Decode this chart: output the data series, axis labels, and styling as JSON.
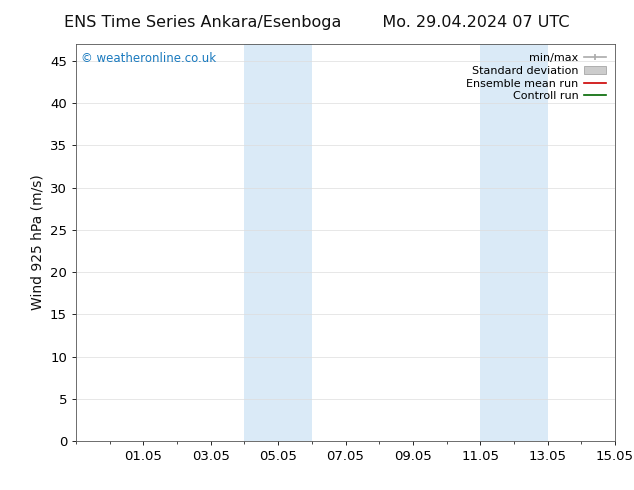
{
  "title_left": "ENS Time Series Ankara/Esenboga",
  "title_right": "Mo. 29.04.2024 07 UTC",
  "ylabel": "Wind 925 hPa (m/s)",
  "watermark": "© weatheronline.co.uk",
  "background_color": "#ffffff",
  "plot_bg_color": "#ffffff",
  "xmin": 29.0,
  "xmax": 45.0,
  "ymin": 0,
  "ymax": 47,
  "yticks": [
    0,
    5,
    10,
    15,
    20,
    25,
    30,
    35,
    40,
    45
  ],
  "xtick_labels": [
    "01.05",
    "03.05",
    "05.05",
    "07.05",
    "09.05",
    "11.05",
    "13.05",
    "15.05"
  ],
  "xtick_positions": [
    31,
    33,
    35,
    37,
    39,
    41,
    43,
    45
  ],
  "shaded_bands": [
    {
      "xstart": 34.0,
      "xend": 36.0
    },
    {
      "xstart": 41.0,
      "xend": 43.0
    }
  ],
  "shaded_color": "#daeaf7",
  "legend_items": [
    {
      "label": "min/max",
      "color": "#aaaaaa",
      "lw": 1.2
    },
    {
      "label": "Standard deviation",
      "color": "#cccccc",
      "lw": 5
    },
    {
      "label": "Ensemble mean run",
      "color": "#cc0000",
      "lw": 1.2
    },
    {
      "label": "Controll run",
      "color": "#006600",
      "lw": 1.2
    }
  ],
  "watermark_color": "#1a7abf",
  "title_fontsize": 11.5,
  "axis_fontsize": 10,
  "tick_fontsize": 9.5
}
